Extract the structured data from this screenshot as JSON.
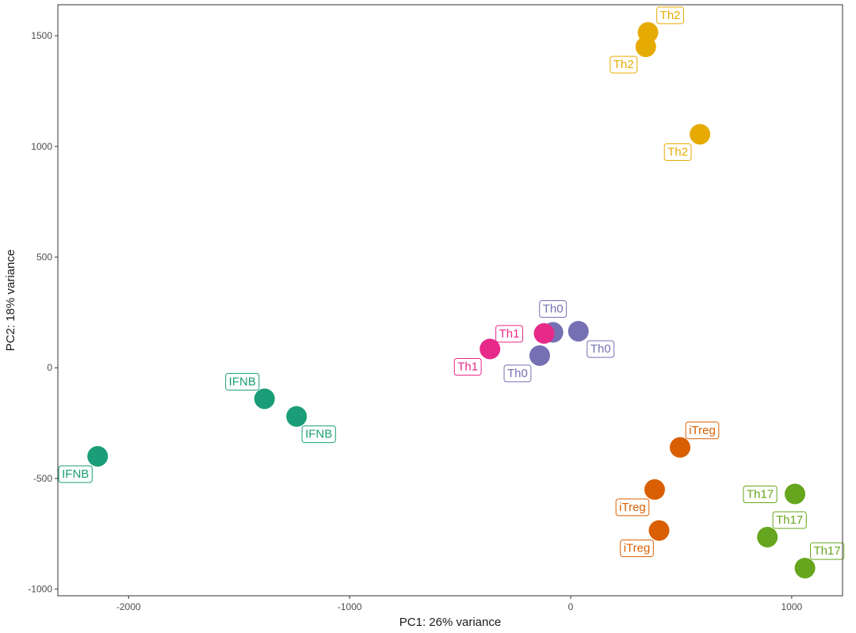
{
  "chart_data": {
    "type": "scatter",
    "title": "",
    "xlabel": "PC1: 26% variance",
    "ylabel": "PC2: 18% variance",
    "xlim": [
      -2320,
      1230
    ],
    "ylim": [
      -1030,
      1640
    ],
    "xticks": [
      -2000,
      -1000,
      0,
      1000
    ],
    "yticks": [
      -1000,
      -500,
      0,
      500,
      1000,
      1500
    ],
    "grid": false,
    "legend": "none",
    "series": [
      {
        "name": "IFNB",
        "color": "#1b9e77",
        "points": [
          {
            "x": -2140,
            "y": -400,
            "label": "IFNB",
            "label_dir": "sw"
          },
          {
            "x": -1385,
            "y": -140,
            "label": "IFNB",
            "label_dir": "nw"
          },
          {
            "x": -1240,
            "y": -220,
            "label": "IFNB",
            "label_dir": "se"
          }
        ]
      },
      {
        "name": "iTreg",
        "color": "#d95f02",
        "points": [
          {
            "x": 495,
            "y": -360,
            "label": "iTreg",
            "label_dir": "ne"
          },
          {
            "x": 380,
            "y": -550,
            "label": "iTreg",
            "label_dir": "sw"
          },
          {
            "x": 400,
            "y": -735,
            "label": "iTreg",
            "label_dir": "sw"
          }
        ]
      },
      {
        "name": "Th0",
        "color": "#7570b3",
        "points": [
          {
            "x": -80,
            "y": 160,
            "label": "Th0",
            "label_dir": "n"
          },
          {
            "x": 35,
            "y": 165,
            "label": "Th0",
            "label_dir": "se"
          },
          {
            "x": -140,
            "y": 55,
            "label": "Th0",
            "label_dir": "sw"
          }
        ]
      },
      {
        "name": "Th1",
        "color": "#e7298a",
        "points": [
          {
            "x": -365,
            "y": 85,
            "label": "Th1",
            "label_dir": "sw"
          },
          {
            "x": -120,
            "y": 155,
            "label": "Th1",
            "label_dir": "w"
          }
        ]
      },
      {
        "name": "Th17",
        "color": "#66a61e",
        "points": [
          {
            "x": 1015,
            "y": -570,
            "label": "Th17",
            "label_dir": "w"
          },
          {
            "x": 890,
            "y": -765,
            "label": "Th17",
            "label_dir": "ne"
          },
          {
            "x": 1060,
            "y": -905,
            "label": "Th17",
            "label_dir": "ne"
          }
        ]
      },
      {
        "name": "Th2",
        "color": "#e6ab02",
        "points": [
          {
            "x": 350,
            "y": 1515,
            "label": "Th2",
            "label_dir": "ne"
          },
          {
            "x": 340,
            "y": 1450,
            "label": "Th2",
            "label_dir": "sw"
          },
          {
            "x": 585,
            "y": 1055,
            "label": "Th2",
            "label_dir": "sw"
          }
        ]
      }
    ]
  }
}
